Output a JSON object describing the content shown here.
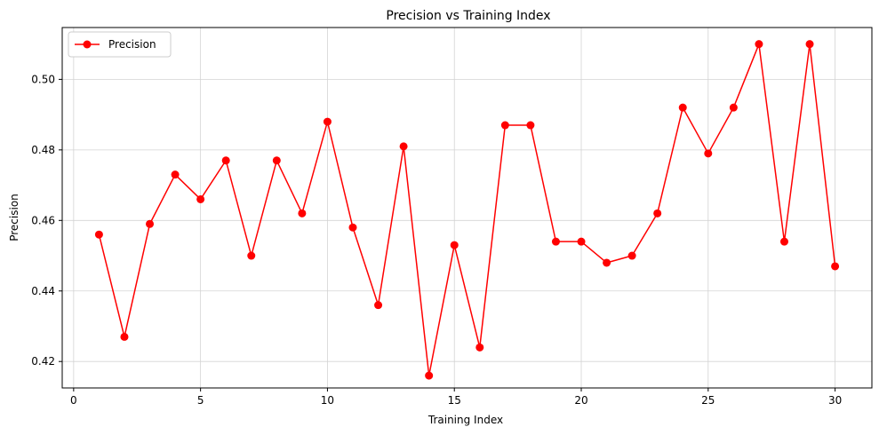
{
  "chart_data": {
    "type": "line",
    "title": "Precision vs Training Index",
    "xlabel": "Training Index",
    "ylabel": "Precision",
    "xlim": [
      -0.45,
      31.45
    ],
    "ylim": [
      0.4125,
      0.5147
    ],
    "xticks": [
      0,
      5,
      10,
      15,
      20,
      25,
      30
    ],
    "xtick_labels": [
      "0",
      "5",
      "10",
      "15",
      "20",
      "25",
      "30"
    ],
    "yticks": [
      0.42,
      0.44,
      0.46,
      0.48,
      0.5
    ],
    "ytick_labels": [
      "0.42",
      "0.44",
      "0.46",
      "0.48",
      "0.50"
    ],
    "grid": true,
    "legend_position": "top-left",
    "x": [
      1,
      2,
      3,
      4,
      5,
      6,
      7,
      8,
      9,
      10,
      11,
      12,
      13,
      14,
      15,
      16,
      17,
      18,
      19,
      20,
      21,
      22,
      23,
      24,
      25,
      26,
      27,
      28,
      29,
      30
    ],
    "series": [
      {
        "name": "Precision",
        "color": "#ff0000",
        "marker": "circle",
        "values": [
          0.456,
          0.427,
          0.459,
          0.473,
          0.466,
          0.477,
          0.45,
          0.477,
          0.462,
          0.488,
          0.458,
          0.436,
          0.481,
          0.416,
          0.453,
          0.424,
          0.487,
          0.487,
          0.454,
          0.454,
          0.448,
          0.45,
          0.462,
          0.492,
          0.479,
          0.492,
          0.51,
          0.454,
          0.51,
          0.447
        ]
      }
    ]
  }
}
